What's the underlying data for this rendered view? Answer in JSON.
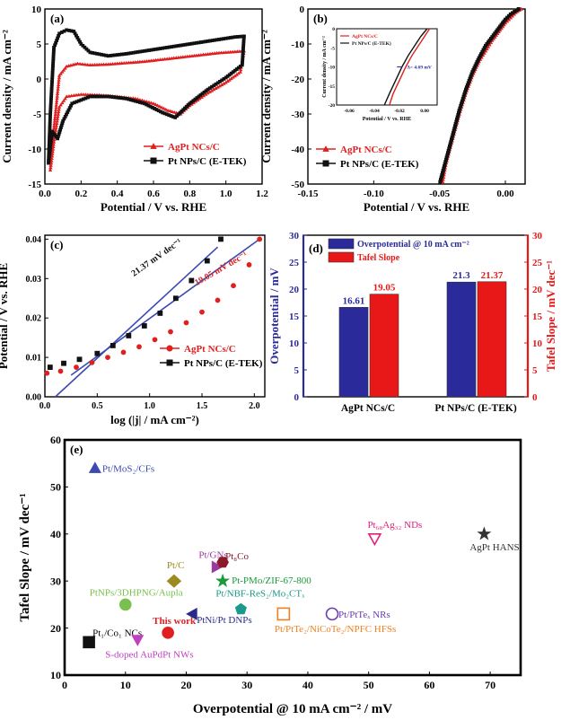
{
  "chart_data": [
    {
      "id": "a",
      "panel_label": "(a)",
      "type": "line",
      "xlabel": "Potential / V vs. RHE",
      "ylabel": "Current density / mA cm⁻²",
      "xlim": [
        0.0,
        1.2
      ],
      "ylim": [
        -15,
        10
      ],
      "xticks": [
        0.0,
        0.2,
        0.4,
        0.6,
        0.8,
        1.0,
        1.2
      ],
      "xtick_labels": [
        "0.0",
        "0.2",
        "0.4",
        "0.6",
        "0.8",
        "1.0",
        "1.2"
      ],
      "yticks": [
        -15,
        -10,
        -5,
        0,
        5,
        10
      ],
      "ytick_labels": [
        "-15",
        "-10",
        "-5",
        "0",
        "5",
        "10"
      ],
      "legend": "bottom-right",
      "series": [
        {
          "name": "AgPt NCs/C",
          "color": "#e02020",
          "marker": "triangle",
          "upper": [
            [
              0.03,
              -13
            ],
            [
              0.05,
              -7
            ],
            [
              0.08,
              0.5
            ],
            [
              0.12,
              1.8
            ],
            [
              0.18,
              2.2
            ],
            [
              0.25,
              2.0
            ],
            [
              0.35,
              2.1
            ],
            [
              0.45,
              2.3
            ],
            [
              0.55,
              2.5
            ],
            [
              0.65,
              2.8
            ],
            [
              0.75,
              3.1
            ],
            [
              0.85,
              3.4
            ],
            [
              0.95,
              3.7
            ],
            [
              1.05,
              3.9
            ],
            [
              1.1,
              4.0
            ]
          ],
          "lower": [
            [
              1.1,
              4.0
            ],
            [
              1.08,
              1.0
            ],
            [
              1.0,
              -0.5
            ],
            [
              0.9,
              -2.0
            ],
            [
              0.8,
              -3.8
            ],
            [
              0.75,
              -5.0
            ],
            [
              0.68,
              -4.5
            ],
            [
              0.6,
              -3.5
            ],
            [
              0.5,
              -2.8
            ],
            [
              0.4,
              -2.5
            ],
            [
              0.3,
              -2.3
            ],
            [
              0.2,
              -2.2
            ],
            [
              0.12,
              -2.5
            ],
            [
              0.08,
              -4
            ],
            [
              0.05,
              -9
            ],
            [
              0.03,
              -13
            ]
          ]
        },
        {
          "name": "Pt NPs/C (E-TEK)",
          "color": "#111111",
          "marker": "square",
          "upper": [
            [
              0.02,
              -12
            ],
            [
              0.03,
              -5
            ],
            [
              0.05,
              4.5
            ],
            [
              0.08,
              6.5
            ],
            [
              0.12,
              7.0
            ],
            [
              0.16,
              6.8
            ],
            [
              0.2,
              5.0
            ],
            [
              0.25,
              3.8
            ],
            [
              0.35,
              3.3
            ],
            [
              0.45,
              3.6
            ],
            [
              0.55,
              4.0
            ],
            [
              0.65,
              4.4
            ],
            [
              0.75,
              4.8
            ],
            [
              0.85,
              5.2
            ],
            [
              0.95,
              5.6
            ],
            [
              1.05,
              6.0
            ],
            [
              1.1,
              6.1
            ]
          ],
          "lower": [
            [
              1.1,
              6.1
            ],
            [
              1.09,
              2.0
            ],
            [
              1.0,
              0.2
            ],
            [
              0.9,
              -1.5
            ],
            [
              0.8,
              -3.5
            ],
            [
              0.72,
              -5.5
            ],
            [
              0.65,
              -4.8
            ],
            [
              0.55,
              -3.5
            ],
            [
              0.45,
              -2.8
            ],
            [
              0.35,
              -2.5
            ],
            [
              0.25,
              -2.5
            ],
            [
              0.15,
              -3.5
            ],
            [
              0.1,
              -6
            ],
            [
              0.07,
              -8.5
            ],
            [
              0.04,
              -7.5
            ],
            [
              0.02,
              -12
            ]
          ]
        }
      ]
    },
    {
      "id": "b",
      "panel_label": "(b)",
      "type": "line",
      "xlabel": "Potential / V vs. RHE",
      "ylabel": "Current density / mA cm⁻²",
      "xlim": [
        -0.15,
        0.015
      ],
      "ylim": [
        -50,
        0
      ],
      "xticks": [
        -0.15,
        -0.1,
        -0.05,
        0.0
      ],
      "xtick_labels": [
        "-0.15",
        "-0.10",
        "-0.05",
        "0.00"
      ],
      "yticks": [
        -50,
        -40,
        -30,
        -20,
        -10,
        0
      ],
      "ytick_labels": [
        "-50",
        "-40",
        "-30",
        "-20",
        "-10",
        "0"
      ],
      "legend": "bottom-left",
      "series": [
        {
          "name": "AgPt NCs/C",
          "color": "#e02020",
          "marker": "triangle",
          "points": [
            [
              0.012,
              0
            ],
            [
              0.008,
              -1
            ],
            [
              0.004,
              -2.5
            ],
            [
              0.0,
              -4
            ],
            [
              -0.005,
              -6.5
            ],
            [
              -0.01,
              -9
            ],
            [
              -0.015,
              -12
            ],
            [
              -0.02,
              -15
            ],
            [
              -0.025,
              -19
            ],
            [
              -0.03,
              -24
            ],
            [
              -0.035,
              -30
            ],
            [
              -0.04,
              -37
            ],
            [
              -0.045,
              -44
            ],
            [
              -0.048,
              -50
            ]
          ]
        },
        {
          "name": "Pt NPs/C (E-TEK)",
          "color": "#111111",
          "marker": "square",
          "points": [
            [
              0.01,
              0
            ],
            [
              0.004,
              -1.5
            ],
            [
              0.0,
              -3
            ],
            [
              -0.005,
              -5.5
            ],
            [
              -0.01,
              -8
            ],
            [
              -0.015,
              -10.5
            ],
            [
              -0.02,
              -14
            ],
            [
              -0.025,
              -18
            ],
            [
              -0.03,
              -23
            ],
            [
              -0.035,
              -29
            ],
            [
              -0.04,
              -36
            ],
            [
              -0.045,
              -43
            ],
            [
              -0.05,
              -50
            ]
          ]
        }
      ],
      "inset": {
        "xlim": [
          -0.07,
          0.01
        ],
        "ylim": [
          -20,
          0
        ],
        "xticks": [
          -0.06,
          -0.04,
          -0.02,
          0.0
        ],
        "xtick_labels": [
          "-0.06",
          "-0.04",
          "-0.02",
          "0.00"
        ],
        "yticks": [
          -20,
          -15,
          -10,
          -5,
          0
        ],
        "ytick_labels": [
          "-20",
          "-15",
          "-10",
          "-5",
          "0"
        ],
        "xlabel": "Potential / V vs. RHE",
        "ylabel": "Current density / mA cm⁻²",
        "annotation": "Δ= 4.69 mV",
        "series": [
          {
            "name": "AgPt NCs/C",
            "color": "#e02020",
            "points": [
              [
                0.004,
                0
              ],
              [
                0.0,
                -2
              ],
              [
                -0.005,
                -4.5
              ],
              [
                -0.01,
                -7
              ],
              [
                -0.015,
                -10
              ],
              [
                -0.02,
                -13.5
              ],
              [
                -0.025,
                -17
              ],
              [
                -0.028,
                -20
              ]
            ]
          },
          {
            "name": "Pt NPs/C (E-TEK)",
            "color": "#111111",
            "points": [
              [
                0.002,
                0
              ],
              [
                -0.003,
                -2
              ],
              [
                -0.008,
                -4.5
              ],
              [
                -0.013,
                -7
              ],
              [
                -0.018,
                -10
              ],
              [
                -0.023,
                -13.5
              ],
              [
                -0.028,
                -17
              ],
              [
                -0.032,
                -20
              ]
            ]
          }
        ]
      }
    },
    {
      "id": "c",
      "panel_label": "(c)",
      "type": "scatter",
      "xlabel": "log (|j| / mA cm⁻²)",
      "ylabel": "Potential / V vs. RHE",
      "xlim": [
        0.0,
        2.1
      ],
      "ylim": [
        0.0,
        0.041
      ],
      "xticks": [
        0.0,
        0.5,
        1.0,
        1.5,
        2.0
      ],
      "xtick_labels": [
        "0.0",
        "0.5",
        "1.0",
        "1.5",
        "2.0"
      ],
      "yticks": [
        0.0,
        0.01,
        0.02,
        0.03,
        0.04
      ],
      "ytick_labels": [
        "0.00",
        "0.01",
        "0.02",
        "0.03",
        "0.04"
      ],
      "legend": "bottom-right",
      "annotations": [
        {
          "text": "21.37 mV dec⁻¹",
          "color": "#111111"
        },
        {
          "text": "19.05 mV dec⁻¹",
          "color": "#e02020"
        }
      ],
      "series": [
        {
          "name": "AgPt NCs/C",
          "color": "#e02020",
          "marker": "circle",
          "points": [
            [
              0.02,
              0.006
            ],
            [
              0.15,
              0.0065
            ],
            [
              0.3,
              0.0075
            ],
            [
              0.45,
              0.0087
            ],
            [
              0.6,
              0.01
            ],
            [
              0.75,
              0.0113
            ],
            [
              0.9,
              0.0127
            ],
            [
              1.05,
              0.0145
            ],
            [
              1.2,
              0.0165
            ],
            [
              1.35,
              0.0188
            ],
            [
              1.5,
              0.0215
            ],
            [
              1.65,
              0.0245
            ],
            [
              1.8,
              0.0282
            ],
            [
              1.95,
              0.0335
            ],
            [
              2.05,
              0.04
            ]
          ]
        },
        {
          "name": "Pt NPs/C (E-TEK)",
          "color": "#111111",
          "marker": "square",
          "points": [
            [
              0.05,
              0.0075
            ],
            [
              0.18,
              0.0085
            ],
            [
              0.33,
              0.0095
            ],
            [
              0.5,
              0.011
            ],
            [
              0.65,
              0.013
            ],
            [
              0.8,
              0.0155
            ],
            [
              0.95,
              0.018
            ],
            [
              1.1,
              0.0212
            ],
            [
              1.25,
              0.025
            ],
            [
              1.4,
              0.0295
            ],
            [
              1.55,
              0.0345
            ],
            [
              1.68,
              0.04
            ]
          ]
        }
      ],
      "fits": [
        {
          "color": "#3a4ab0",
          "from": [
            0.1,
            0.0
          ],
          "to": [
            1.65,
            0.038
          ]
        },
        {
          "color": "#3a4ab0",
          "from": [
            0.25,
            0.0055
          ],
          "to": [
            2.05,
            0.04
          ]
        }
      ]
    },
    {
      "id": "d",
      "panel_label": "(d)",
      "type": "bar",
      "categories": [
        "AgPt NCs/C",
        "Pt NPs/C (E-TEK)"
      ],
      "ylabel": "Overpotential / mV",
      "y2label": "Tafel Slope / mV dec⁻¹",
      "ylim": [
        0,
        30
      ],
      "yticks": [
        0,
        5,
        10,
        15,
        20,
        25,
        30
      ],
      "ytick_labels": [
        "0",
        "5",
        "10",
        "15",
        "20",
        "25",
        "30"
      ],
      "legend": "top-left",
      "series": [
        {
          "name": "Overpotential @ 10 mA cm⁻²",
          "color": "#2a2a9a",
          "values": [
            16.61,
            21.3
          ],
          "labels": [
            "16.61",
            "21.3"
          ]
        },
        {
          "name": "Tafel Slope",
          "color": "#e81818",
          "values": [
            19.05,
            21.37
          ],
          "labels": [
            "19.05",
            "21.37"
          ]
        }
      ]
    },
    {
      "id": "e",
      "panel_label": "(e)",
      "type": "scatter",
      "xlabel": "Overpotential @ 10 mA cm⁻² / mV",
      "ylabel": "Tafel Slope / mV dec⁻¹",
      "xlim": [
        0,
        75
      ],
      "ylim": [
        10,
        60
      ],
      "xticks": [
        0,
        10,
        20,
        30,
        40,
        50,
        60,
        70
      ],
      "xtick_labels": [
        "0",
        "10",
        "20",
        "30",
        "40",
        "50",
        "60",
        "70"
      ],
      "yticks": [
        10,
        20,
        30,
        40,
        50,
        60
      ],
      "ytick_labels": [
        "10",
        "20",
        "30",
        "40",
        "50",
        "60"
      ],
      "points": [
        {
          "label": "Pt/MoS₂/CFs",
          "x": 5,
          "y": 54,
          "color": "#3a4ab0",
          "marker": "triangle-up"
        },
        {
          "label": "Pt₆₈Ag₃₂ NDs",
          "x": 51,
          "y": 39,
          "color": "#e0207a",
          "marker": "triangle-down-open"
        },
        {
          "label": "AgPt HANS",
          "x": 69,
          "y": 40,
          "color": "#333333",
          "marker": "star"
        },
        {
          "label": "Pt/GNs",
          "x": 25,
          "y": 33,
          "color": "#9a3a9a",
          "marker": "triangle-right"
        },
        {
          "label": "Pt₈Co",
          "x": 26,
          "y": 34,
          "color": "#8a1a2a",
          "marker": "hexagon"
        },
        {
          "label": "Pt/C",
          "x": 18,
          "y": 30,
          "color": "#9a8a20",
          "marker": "diamond"
        },
        {
          "label": "Pt-PMo/ZIF-67-800",
          "x": 26,
          "y": 30,
          "color": "#1a9a3a",
          "marker": "star"
        },
        {
          "label": "PtNPs/3DHPNG/Aupla",
          "x": 10,
          "y": 25,
          "color": "#7ac050",
          "marker": "circle"
        },
        {
          "label": "Pt/NBF-ReS₂/Mo₂CTₓ",
          "x": 29,
          "y": 24,
          "color": "#1a9a8a",
          "marker": "pentagon"
        },
        {
          "label": "Pt/PtTe₂/NiCoTe₂/NPFC HFSs",
          "x": 36,
          "y": 23,
          "color": "#f08020",
          "marker": "square-open"
        },
        {
          "label": "Pt/PtTeₓ NRs",
          "x": 44,
          "y": 23,
          "color": "#6a3ab0",
          "marker": "circle-open"
        },
        {
          "label": "PtNi/Pt DNPs",
          "x": 21,
          "y": 23,
          "color": "#2a2a8a",
          "marker": "triangle-left"
        },
        {
          "label": "This work",
          "x": 17,
          "y": 19,
          "color": "#e02020",
          "marker": "circle"
        },
        {
          "label": "Pt₁/Co₁ NCs",
          "x": 4,
          "y": 17,
          "color": "#111111",
          "marker": "square"
        },
        {
          "label": "S-doped AuPdPt NWs",
          "x": 12,
          "y": 17.5,
          "color": "#c040c0",
          "marker": "triangle-down"
        }
      ]
    }
  ]
}
